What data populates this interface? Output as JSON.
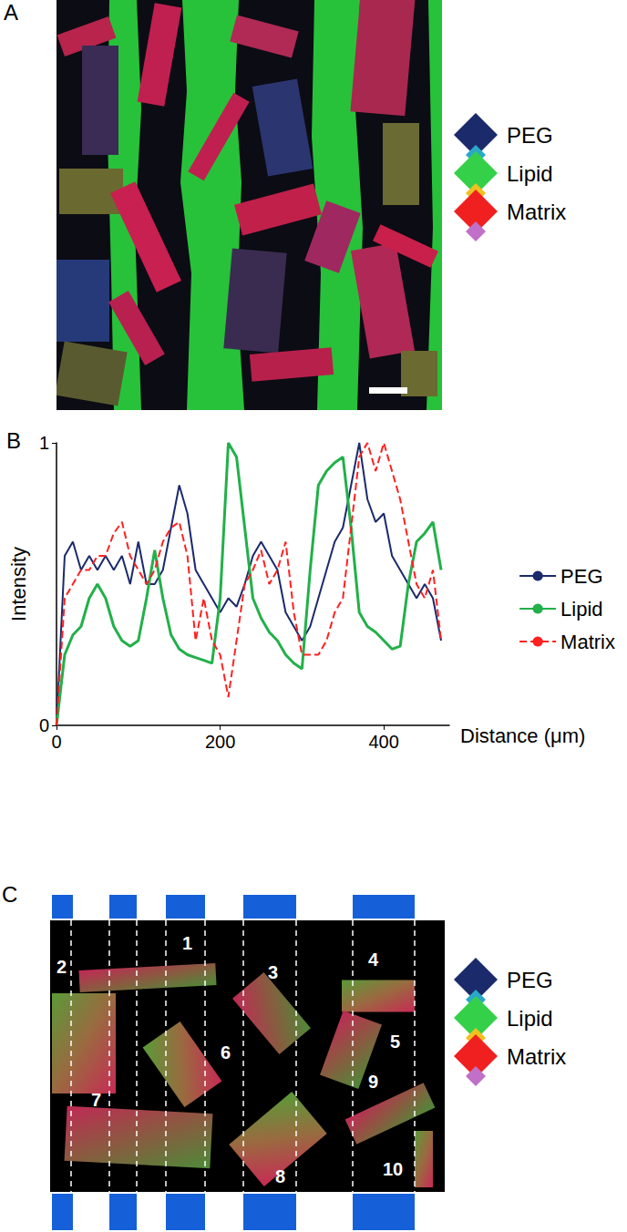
{
  "panel_A": {
    "label": "A",
    "legend": [
      {
        "name": "PEG",
        "color": "#1b2a6b",
        "accent": "#2aa8c8"
      },
      {
        "name": "Lipid",
        "color": "#35d04a",
        "accent": "#f0c020"
      },
      {
        "name": "Matrix",
        "color": "#f02020",
        "accent": "#c070c8"
      }
    ]
  },
  "chart_data": {
    "type": "line",
    "title": "B",
    "xlabel": "Distance (μm)",
    "ylabel": "Intensity",
    "x": [
      0,
      10,
      20,
      30,
      40,
      50,
      60,
      70,
      80,
      90,
      100,
      110,
      120,
      130,
      140,
      150,
      160,
      170,
      180,
      190,
      200,
      210,
      220,
      230,
      240,
      250,
      260,
      270,
      280,
      290,
      300,
      310,
      320,
      330,
      340,
      350,
      360,
      370,
      380,
      390,
      400,
      410,
      420,
      430,
      440,
      450,
      460,
      470
    ],
    "series": [
      {
        "name": "PEG",
        "color": "#1b2a6b",
        "line_style": "solid",
        "values": [
          0,
          0.6,
          0.65,
          0.55,
          0.6,
          0.55,
          0.6,
          0.55,
          0.6,
          0.5,
          0.65,
          0.5,
          0.5,
          0.55,
          0.7,
          0.85,
          0.75,
          0.55,
          0.5,
          0.45,
          0.4,
          0.45,
          0.42,
          0.5,
          0.6,
          0.65,
          0.6,
          0.55,
          0.4,
          0.35,
          0.3,
          0.35,
          0.45,
          0.55,
          0.65,
          0.7,
          0.85,
          1.0,
          0.8,
          0.72,
          0.75,
          0.6,
          0.55,
          0.5,
          0.45,
          0.5,
          0.45,
          0.3
        ]
      },
      {
        "name": "Lipid",
        "color": "#22b04a",
        "line_style": "solid",
        "values": [
          0,
          0.25,
          0.32,
          0.35,
          0.45,
          0.5,
          0.45,
          0.35,
          0.3,
          0.28,
          0.3,
          0.45,
          0.62,
          0.45,
          0.32,
          0.27,
          0.25,
          0.24,
          0.23,
          0.22,
          0.45,
          1.0,
          0.95,
          0.7,
          0.45,
          0.38,
          0.33,
          0.3,
          0.25,
          0.22,
          0.2,
          0.55,
          0.85,
          0.9,
          0.93,
          0.95,
          0.7,
          0.4,
          0.35,
          0.33,
          0.3,
          0.27,
          0.28,
          0.5,
          0.65,
          0.68,
          0.72,
          0.55
        ]
      },
      {
        "name": "Matrix",
        "color": "#ff2020",
        "line_style": "dashed",
        "values": [
          0,
          0.45,
          0.5,
          0.55,
          0.55,
          0.6,
          0.6,
          0.68,
          0.72,
          0.6,
          0.55,
          0.5,
          0.55,
          0.65,
          0.7,
          0.72,
          0.6,
          0.3,
          0.45,
          0.3,
          0.25,
          0.1,
          0.3,
          0.5,
          0.55,
          0.62,
          0.5,
          0.55,
          0.65,
          0.4,
          0.25,
          0.25,
          0.25,
          0.3,
          0.4,
          0.45,
          0.7,
          0.95,
          1.0,
          0.9,
          1.0,
          0.9,
          0.8,
          0.65,
          0.5,
          0.45,
          0.55,
          0.3
        ]
      }
    ],
    "xlim": [
      0,
      480
    ],
    "ylim": [
      0,
      1
    ],
    "xticks": [
      0,
      200,
      400
    ],
    "yticks": [
      0,
      1
    ],
    "legend": "right",
    "grid": false
  },
  "panel_C": {
    "label": "C",
    "legend": [
      {
        "name": "PEG",
        "color": "#1b2a6b",
        "accent": "#2aa8c8"
      },
      {
        "name": "Lipid",
        "color": "#35d04a",
        "accent": "#f0c020"
      },
      {
        "name": "Matrix",
        "color": "#f02020",
        "accent": "#c070c8"
      }
    ],
    "fragments": [
      "1",
      "2",
      "3",
      "4",
      "5",
      "6",
      "7",
      "8",
      "9",
      "10"
    ]
  }
}
